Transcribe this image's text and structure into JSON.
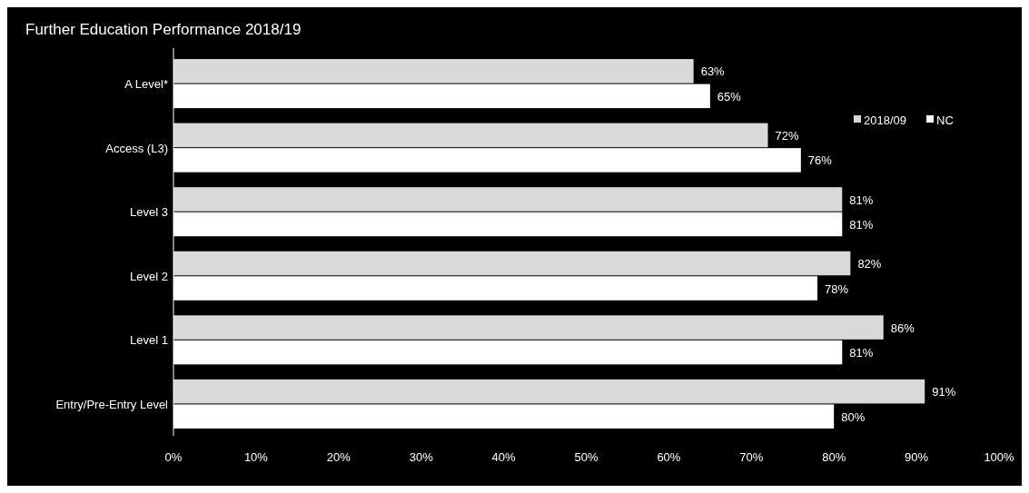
{
  "chart_data": {
    "type": "bar",
    "orientation": "horizontal",
    "title": "Further Education Performance 2018/19",
    "categories": [
      "A Level*",
      "Access (L3)",
      "Level 3",
      "Level 2",
      "Level 1",
      "Entry/Pre-Entry Level"
    ],
    "series": [
      {
        "name": "2018/09",
        "color": "#d9d9d9",
        "values": [
          63,
          72,
          81,
          82,
          86,
          91
        ]
      },
      {
        "name": "NC",
        "color": "#ffffff",
        "values": [
          65,
          76,
          81,
          78,
          81,
          80
        ]
      }
    ],
    "xlim": [
      0,
      100
    ],
    "xticks": [
      {
        "value": 0,
        "label": "0%"
      },
      {
        "value": 10,
        "label": "10%"
      },
      {
        "value": 20,
        "label": "20%"
      },
      {
        "value": 30,
        "label": "30%"
      },
      {
        "value": 40,
        "label": "40%"
      },
      {
        "value": 50,
        "label": "50%"
      },
      {
        "value": 60,
        "label": "60%"
      },
      {
        "value": 70,
        "label": "70%"
      },
      {
        "value": 80,
        "label": "80%"
      },
      {
        "value": 90,
        "label": "90%"
      },
      {
        "value": 100,
        "label": "100%"
      }
    ],
    "value_labels": [
      [
        "63%",
        "72%",
        "81%",
        "82%",
        "86%",
        "91%"
      ],
      [
        "65%",
        "76%",
        "81%",
        "78%",
        "81%",
        "80%"
      ]
    ],
    "legend": "top right",
    "grid": false
  }
}
